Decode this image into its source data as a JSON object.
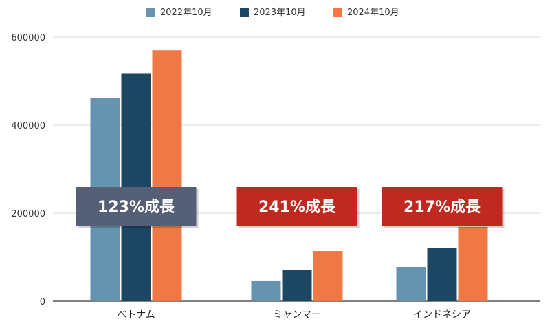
{
  "chart_data": {
    "type": "bar",
    "title": "",
    "xlabel": "",
    "ylabel": "",
    "categories": [
      "ベトナム",
      "ミャンマー",
      "インドネシア"
    ],
    "series": [
      {
        "name": "2022年10月",
        "color": "#6593b0",
        "values": [
          462000,
          47000,
          77000
        ]
      },
      {
        "name": "2023年10月",
        "color": "#1c4662",
        "values": [
          518000,
          71000,
          121000
        ]
      },
      {
        "name": "2024年10月",
        "color": "#ee7944",
        "values": [
          570000,
          114000,
          169000
        ]
      }
    ],
    "ylim": [
      0,
      600000
    ],
    "yticks": [
      "0",
      "200000",
      "400000",
      "600000"
    ],
    "grid": true,
    "legend": "top",
    "annotations": [
      {
        "category": "ベトナム",
        "text": "123%成長",
        "color": "#555f75"
      },
      {
        "category": "ミャンマー",
        "text": "241%成長",
        "color": "#c0291f"
      },
      {
        "category": "インドネシア",
        "text": "217%成長",
        "color": "#c0291f"
      }
    ]
  }
}
